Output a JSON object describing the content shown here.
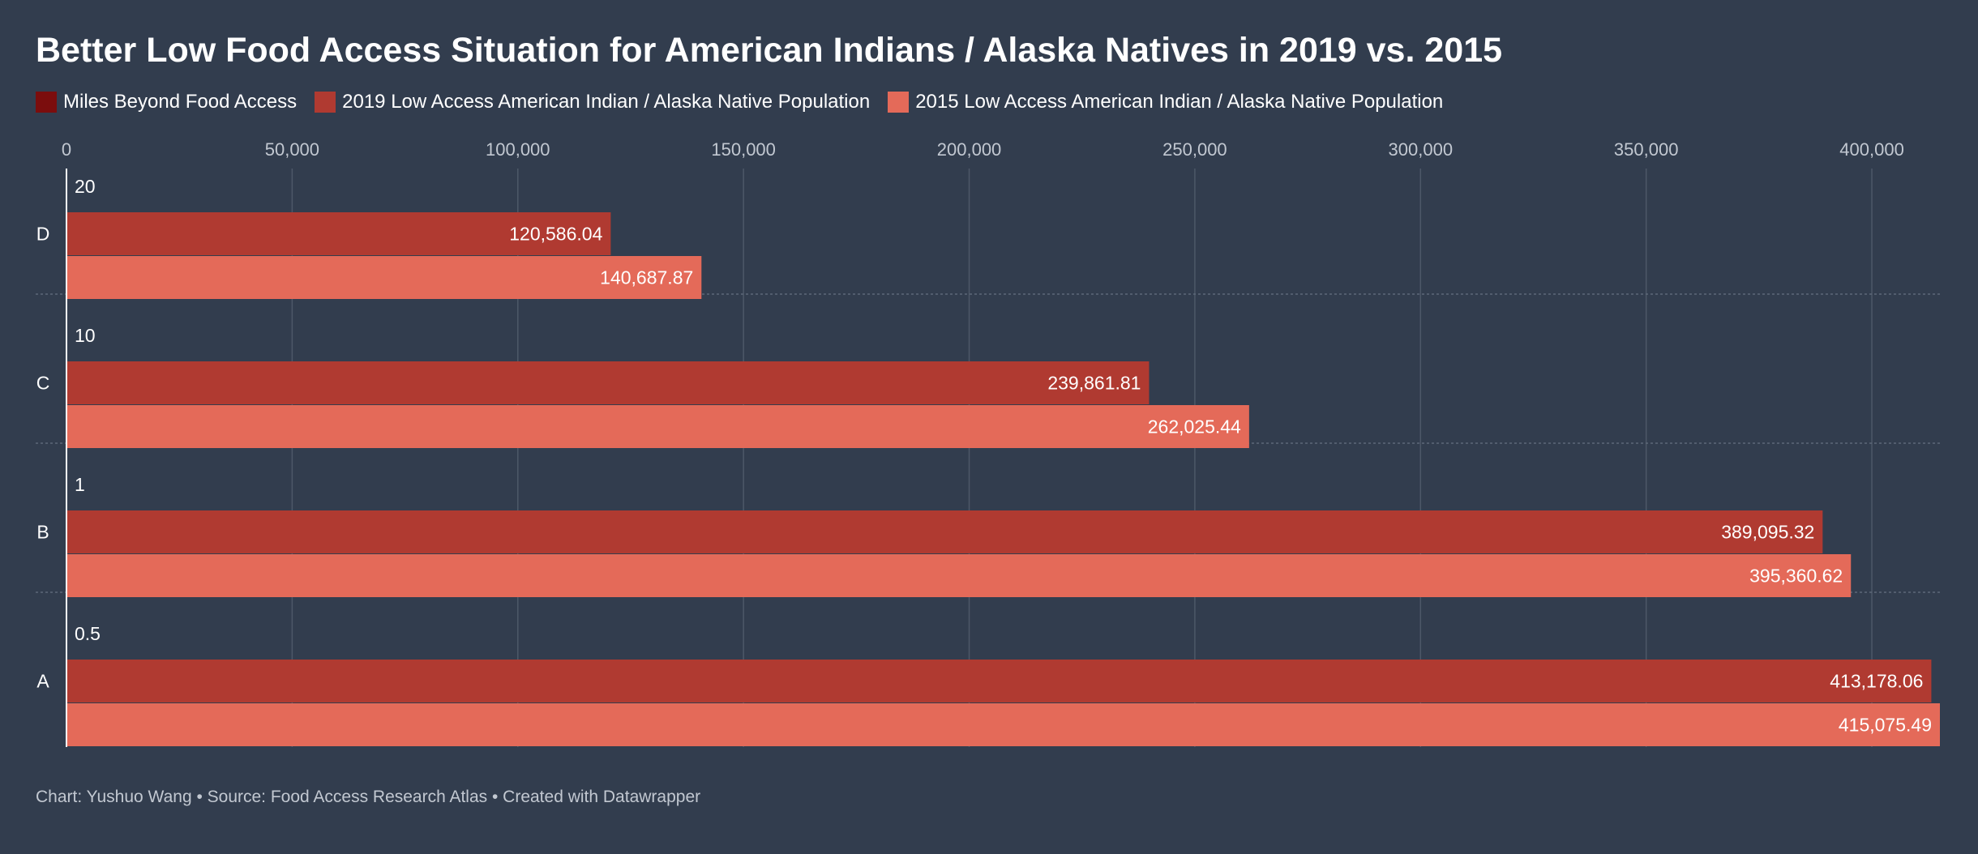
{
  "header": {
    "title": "Better Low Food Access Situation for American Indians / Alaska Natives in 2019 vs. 2015"
  },
  "footer": {
    "source": "Chart: Yushuo Wang • Source: Food Access Research Atlas • Created with Datawrapper"
  },
  "colors": {
    "background": "#323d4e",
    "miles": "#7b0d0d",
    "pop2019": "#b03a31",
    "pop2015": "#e46a59",
    "grid": "#4d5868",
    "tick_text": "#c2c8d1"
  },
  "chart_data": {
    "type": "bar",
    "orientation": "horizontal",
    "title": "Better Low Food Access Situation for American Indians / Alaska Natives in 2019 vs. 2015",
    "categories": [
      "D",
      "C",
      "B",
      "A"
    ],
    "series": [
      {
        "name": "Miles Beyond Food Access",
        "values": [
          20,
          10,
          1,
          0.5
        ],
        "labels": [
          "20",
          "10",
          "1",
          "0.5"
        ],
        "color": "#7b0d0d"
      },
      {
        "name": "2019 Low Access American Indian / Alaska Native Population",
        "values": [
          120586.04,
          239861.81,
          389095.32,
          413178.06
        ],
        "labels": [
          "120,586.04",
          "239,861.81",
          "389,095.32",
          "413,178.06"
        ],
        "color": "#b03a31"
      },
      {
        "name": "2015 Low Access American Indian / Alaska Native Population",
        "values": [
          140687.87,
          262025.44,
          395360.62,
          415075.49
        ],
        "labels": [
          "140,687.87",
          "262,025.44",
          "395,360.62",
          "415,075.49"
        ],
        "color": "#e46a59"
      }
    ],
    "xlim": [
      0,
      415075.49
    ],
    "xticks": [
      0,
      50000,
      100000,
      150000,
      200000,
      250000,
      300000,
      350000,
      400000
    ],
    "xtick_labels": [
      "0",
      "50,000",
      "100,000",
      "150,000",
      "200,000",
      "250,000",
      "300,000",
      "350,000",
      "400,000"
    ],
    "xlabel": "",
    "ylabel": "",
    "grid": true,
    "legend_position": "top-left"
  }
}
